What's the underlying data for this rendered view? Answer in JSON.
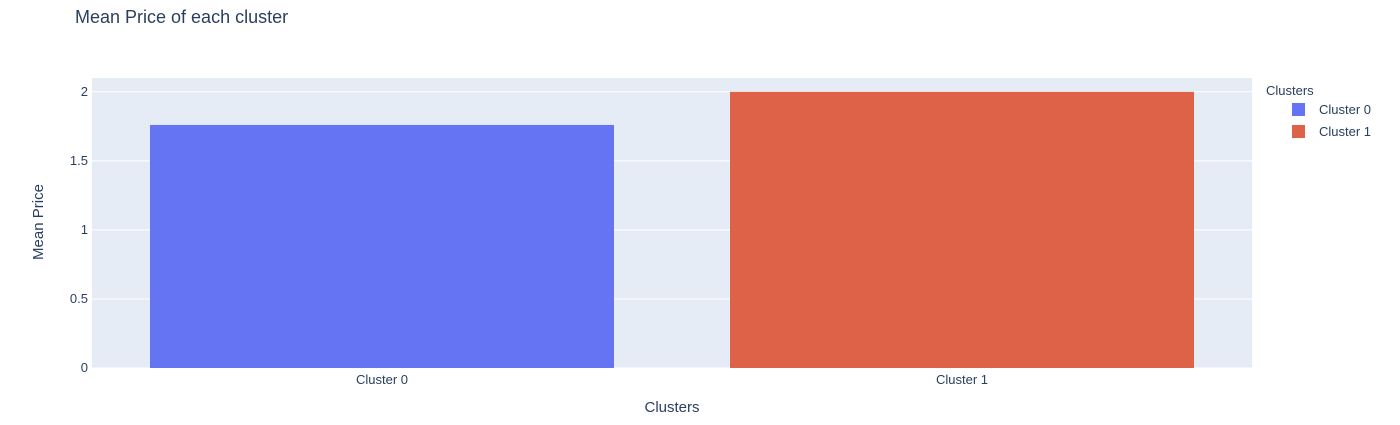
{
  "chart_data": {
    "type": "bar",
    "title": "Mean Price of each cluster",
    "xlabel": "Clusters",
    "ylabel": "Mean Price",
    "categories": [
      "Cluster 0",
      "Cluster 1"
    ],
    "values": [
      1.76,
      2.0
    ],
    "colors": [
      "#636efa",
      "#ef553b"
    ],
    "bar_colors_rendered": [
      "#6574f2",
      "#dd6248"
    ],
    "ylim": [
      0,
      2.1
    ],
    "yticks": [
      0,
      0.5,
      1,
      1.5,
      2
    ],
    "ytick_labels": [
      "0",
      "0.5",
      "1",
      "1.5",
      "2"
    ],
    "grid": true,
    "plot_background": "#e5ecf6",
    "legend": {
      "title": "Clusters",
      "placement": "top-right",
      "items": [
        "Cluster 0",
        "Cluster 1"
      ]
    }
  }
}
